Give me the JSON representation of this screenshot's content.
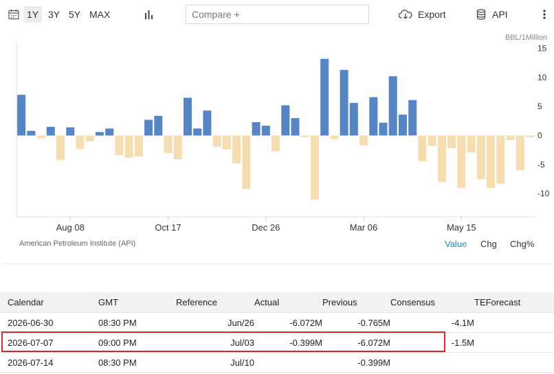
{
  "toolbar": {
    "ranges": [
      "1Y",
      "3Y",
      "5Y",
      "MAX"
    ],
    "active_range": "1Y",
    "compare_placeholder": "Compare +",
    "export_label": "Export",
    "api_label": "API"
  },
  "chart_data": {
    "type": "bar",
    "unit_label": "BBL/1Million",
    "y_ticks": [
      15,
      10,
      5,
      0,
      -5,
      -10
    ],
    "ylim": [
      -14,
      16
    ],
    "x_tick_labels": [
      "Aug 08",
      "Oct 17",
      "Dec 26",
      "Mar 06",
      "May 15"
    ],
    "x_tick_indices": [
      5,
      15,
      25,
      35,
      45
    ],
    "values": [
      7.0,
      0.8,
      -0.5,
      1.5,
      -4.2,
      1.4,
      -2.3,
      -1.0,
      0.6,
      1.2,
      -3.4,
      -3.8,
      -3.6,
      2.7,
      3.4,
      -3.0,
      -4.1,
      6.5,
      1.2,
      4.3,
      -1.9,
      -2.4,
      -4.8,
      -9.2,
      2.3,
      1.7,
      -2.7,
      5.2,
      3.0,
      -0.3,
      -11.0,
      13.2,
      -0.6,
      11.3,
      5.6,
      -1.7,
      6.6,
      2.2,
      10.2,
      3.6,
      6.1,
      -4.4,
      -1.8,
      -8.0,
      -2.2,
      -9.0,
      -2.9,
      -7.5,
      -9.0,
      -8.3,
      -0.8,
      -6.0,
      -0.3
    ],
    "colors": {
      "positive": "#5585c5",
      "negative": "#f6ddb0"
    },
    "grid": {
      "horizontal": false,
      "vertical": false
    }
  },
  "source": "American Petroleum Institute (API)",
  "modes": [
    "Value",
    "Chg",
    "Chg%"
  ],
  "active_mode": "Value",
  "calendar": {
    "headers": [
      "Calendar",
      "GMT",
      "Reference",
      "Actual",
      "Previous",
      "Consensus",
      "TEForecast"
    ],
    "rows": [
      [
        "2026-06-30",
        "08:30 PM",
        "Jun/26",
        "-6.072M",
        "-0.765M",
        "-4.1M",
        ""
      ],
      [
        "2026-07-07",
        "09:00 PM",
        "Jul/03",
        "-0.399M",
        "-6.072M",
        "-1.5M",
        ""
      ],
      [
        "2026-07-14",
        "08:30 PM",
        "Jul/10",
        "",
        "-0.399M",
        "",
        ""
      ]
    ],
    "highlighted_row": 1,
    "highlight_color": "#d9262c"
  },
  "colors": {
    "accent": "#1f8dd6"
  }
}
